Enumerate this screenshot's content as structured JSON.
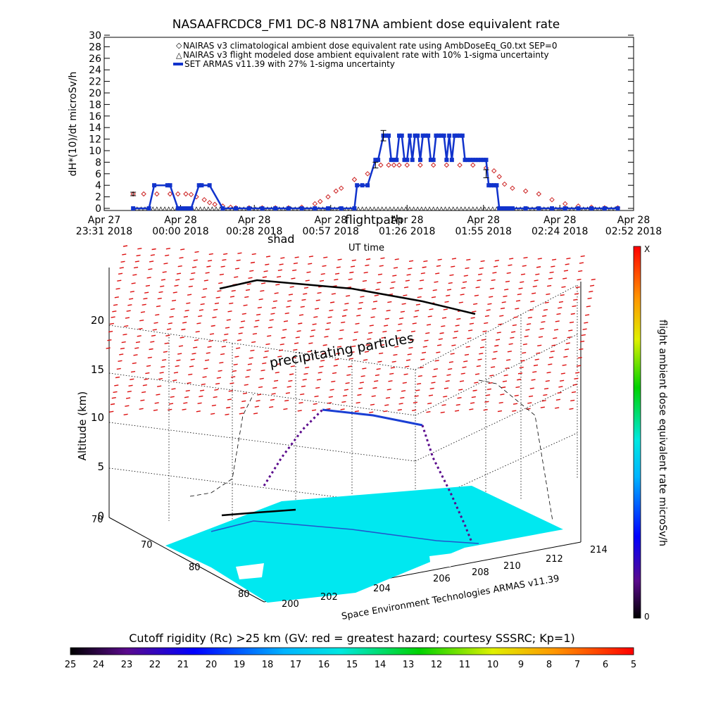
{
  "chart_data": [
    {
      "type": "line",
      "title": "NASAAFRCDC8_FM1 DC-8    N817NA ambient dose equivalent rate",
      "ylabel": "dH*(10)/dt microSv/h",
      "xlabel": "UT time",
      "ylim": [
        0,
        30
      ],
      "yticks": [
        0,
        2,
        4,
        6,
        8,
        10,
        12,
        14,
        16,
        18,
        20,
        22,
        24,
        26,
        28,
        30
      ],
      "xlim_minutes": [
        0,
        201
      ],
      "xticks": [
        {
          "m": 0,
          "l1": "Apr 27",
          "l2": "23:31 2018"
        },
        {
          "m": 29,
          "l1": "Apr 28",
          "l2": "00:00 2018"
        },
        {
          "m": 57,
          "l1": "Apr 28",
          "l2": "00:28 2018"
        },
        {
          "m": 86,
          "l1": "Apr 28",
          "l2": "00:57 2018"
        },
        {
          "m": 115,
          "l1": "Apr 28",
          "l2": "01:26 2018"
        },
        {
          "m": 144,
          "l1": "Apr 28",
          "l2": "01:55 2018"
        },
        {
          "m": 173,
          "l1": "Apr 28",
          "l2": "02:24 2018"
        },
        {
          "m": 201,
          "l1": "Apr 28",
          "l2": "02:52 2018"
        }
      ],
      "legend": [
        "NAIRAS v3 climatological ambient dose equivalent rate using AmbDoseEq_G0.txt SEP=0",
        "NAIRAS v3 flight modeled dose ambient equivalent rate with 10% 1-sigma uncertainty",
        "SET ARMAS v11.39 with 27% 1-sigma uncertainty"
      ],
      "legend_position": "top",
      "series": [
        {
          "color": "#cc2222",
          "marker": "diamond",
          "x": [
            11,
            15,
            20,
            25,
            28,
            31,
            33,
            35,
            38,
            40,
            42,
            45,
            48,
            50,
            55,
            60,
            65,
            70,
            75,
            80,
            82,
            85,
            88,
            90,
            95,
            100,
            105,
            108,
            110,
            112,
            115,
            120,
            125,
            130,
            135,
            140,
            145,
            148,
            150,
            152,
            155,
            160,
            165,
            170,
            175,
            180,
            185,
            190,
            195
          ],
          "y": [
            2.5,
            2.5,
            2.5,
            2.5,
            2.5,
            2.5,
            2.4,
            2.0,
            1.5,
            1.0,
            0.7,
            0.4,
            0.2,
            0.1,
            0.1,
            0.1,
            0.1,
            0.1,
            0.2,
            0.8,
            1.2,
            2.0,
            3.0,
            3.5,
            5.0,
            6.0,
            7.5,
            7.5,
            7.5,
            7.5,
            7.5,
            7.5,
            7.5,
            7.5,
            7.5,
            7.5,
            7.0,
            6.5,
            5.5,
            4.2,
            3.5,
            3.0,
            2.5,
            1.5,
            0.8,
            0.4,
            0.2,
            0.1,
            0.1
          ]
        },
        {
          "color": "#000000",
          "marker": "triangle",
          "x": [
            11,
            20,
            30,
            40,
            50,
            60,
            70,
            80,
            90,
            100,
            110,
            120,
            130,
            140,
            150,
            160,
            170,
            180,
            190,
            195
          ],
          "y": [
            0,
            0,
            0,
            0,
            0,
            0,
            0,
            0,
            0,
            0,
            0,
            0,
            0,
            0,
            0,
            0,
            0,
            0,
            0,
            0
          ]
        },
        {
          "color": "#1133cc",
          "marker": "square",
          "x": [
            11,
            17,
            19,
            24,
            25,
            28,
            29,
            30,
            31,
            32,
            33,
            36,
            37,
            40,
            45,
            50,
            55,
            60,
            65,
            70,
            75,
            80,
            85,
            90,
            95,
            96,
            98,
            100,
            103,
            104,
            106,
            107,
            108,
            109,
            110,
            111,
            112,
            113,
            114,
            115,
            116,
            117,
            118,
            119,
            120,
            121,
            122,
            123,
            124,
            125,
            126,
            127,
            128,
            129,
            130,
            131,
            132,
            133,
            134,
            135,
            136,
            137,
            138,
            139,
            140,
            141,
            142,
            143,
            144,
            145,
            146,
            147,
            148,
            149,
            150,
            151,
            152,
            153,
            154,
            155,
            160,
            165,
            170,
            175,
            180,
            185,
            190,
            195
          ],
          "y": [
            0,
            0,
            4,
            4,
            4,
            0,
            0,
            0,
            0,
            0,
            0,
            4,
            4,
            4,
            0,
            0,
            0,
            0,
            0,
            0,
            0,
            0,
            0,
            0,
            0,
            4,
            4,
            4,
            8.4,
            8.4,
            12.6,
            12.6,
            12.6,
            8.4,
            8.4,
            8.4,
            12.6,
            12.6,
            8.4,
            8.4,
            12.6,
            8.4,
            12.6,
            12.6,
            8.4,
            12.6,
            12.6,
            12.6,
            8.4,
            8.4,
            12.6,
            12.6,
            12.6,
            12.6,
            8.4,
            12.6,
            8.4,
            12.6,
            12.6,
            12.6,
            12.6,
            8.4,
            8.4,
            8.4,
            8.4,
            8.4,
            8.4,
            8.4,
            8.4,
            8.4,
            4,
            4,
            4,
            4,
            0,
            0,
            0,
            0,
            0,
            0,
            0,
            0,
            0,
            0,
            0,
            0,
            0,
            0
          ]
        }
      ],
      "error_bars": [
        {
          "x": 11,
          "y": 2.5,
          "err": 0.3
        },
        {
          "x": 106,
          "y": 12.6,
          "err": 0.9
        },
        {
          "x": 103,
          "y": 7.5,
          "err": 0.5
        },
        {
          "x": 145,
          "y": 6.0,
          "err": 0.7
        }
      ]
    },
    {
      "type": "scatter",
      "title": "flightpath",
      "subtitle": "shad",
      "zlabel": "Altitude (km)",
      "zticks": [
        0,
        5,
        10,
        15,
        20
      ],
      "xlabel_axis": "Space Environment Technologies ARMAS v11.39",
      "lon_ticks": [
        200,
        202,
        204,
        206,
        208,
        210,
        212,
        214
      ],
      "lat_ticks": [
        80,
        80,
        70,
        70
      ],
      "region_label": "precipitating particles",
      "colorbar_right": {
        "label": "flight ambient dose equivalent rate microSv/h",
        "top": "X",
        "bottom": "0"
      },
      "colorbar_bottom": {
        "label": "Cutoff rigidity (Rc) >25 km (GV: red = greatest hazard; courtesy SSSRC; Kp=1)",
        "ticks": [
          "25",
          "24",
          "23",
          "22",
          "21",
          "20",
          "19",
          "18",
          "17",
          "16",
          "15",
          "14",
          "13",
          "12",
          "11",
          "10",
          "9",
          "8",
          "7",
          "6",
          "5"
        ]
      }
    }
  ]
}
